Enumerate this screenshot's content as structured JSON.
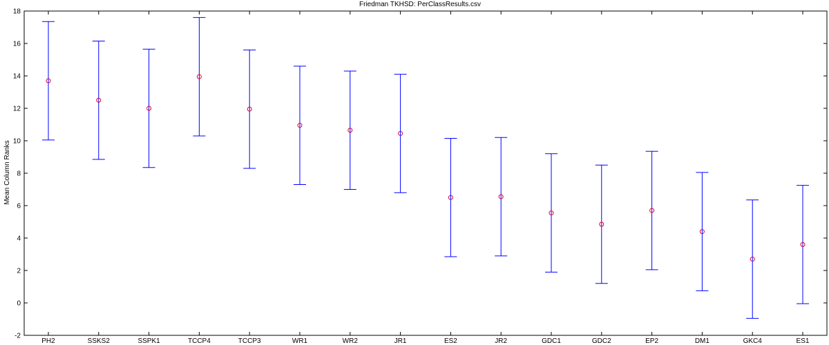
{
  "chart_data": {
    "type": "errorbar",
    "title": "Friedman TKHSD: PerClassResults.csv",
    "xlabel": "",
    "ylabel": "Mean Column Ranks",
    "ylim": [
      -2,
      18
    ],
    "yticks": [
      -2,
      0,
      2,
      4,
      6,
      8,
      10,
      12,
      14,
      16,
      18
    ],
    "grid": false,
    "categories": [
      "PH2",
      "SSKS2",
      "SSPK1",
      "TCCP4",
      "TCCP3",
      "WR1",
      "WR2",
      "JR1",
      "ES2",
      "JR2",
      "GDC1",
      "GDC2",
      "EP2",
      "DM1",
      "GKC4",
      "ES1"
    ],
    "means": [
      13.7,
      12.5,
      12.0,
      13.95,
      11.95,
      10.95,
      10.65,
      10.45,
      6.5,
      6.55,
      5.55,
      4.85,
      5.7,
      4.4,
      2.7,
      3.6
    ],
    "lower": [
      10.05,
      8.85,
      8.35,
      10.3,
      8.3,
      7.3,
      7.0,
      6.8,
      2.85,
      2.9,
      1.9,
      1.2,
      2.05,
      0.75,
      -0.95,
      -0.05
    ],
    "upper": [
      17.35,
      16.15,
      15.65,
      17.6,
      15.6,
      14.6,
      14.3,
      14.1,
      10.15,
      10.2,
      9.2,
      8.5,
      9.35,
      8.05,
      6.35,
      7.25
    ],
    "colors": {
      "errorbar": "#0000ff",
      "marker": "#d6003a",
      "axis": "#000000"
    }
  }
}
